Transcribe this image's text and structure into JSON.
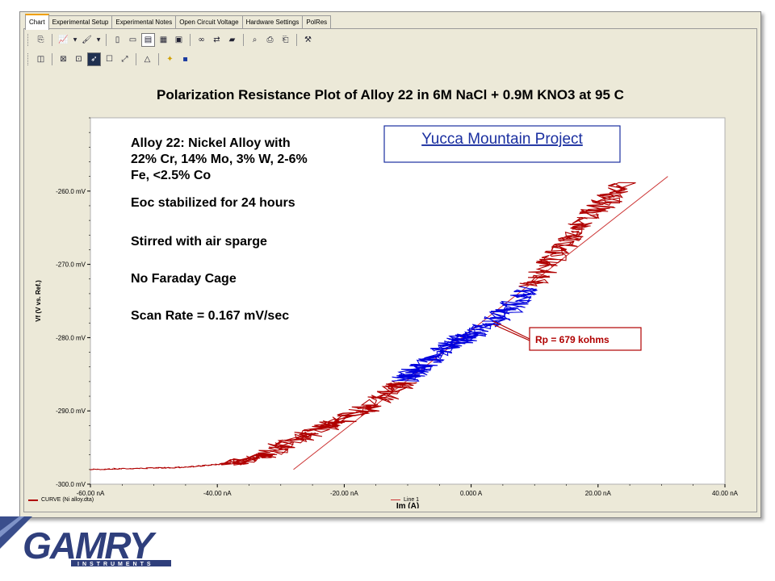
{
  "tabs": [
    {
      "label": "Chart"
    },
    {
      "label": "Experimental Setup"
    },
    {
      "label": "Experimental Notes"
    },
    {
      "label": "Open Circuit Voltage"
    },
    {
      "label": "Hardware Settings"
    },
    {
      "label": "PolRes"
    }
  ],
  "toolbar1": [
    "copy-icon",
    "chart-icon",
    "dropdown-icon",
    "paint-icon",
    "dropdown-icon",
    "page-icon",
    "page-icon",
    "table-icon",
    "grid-icon",
    "image-icon",
    "binoculars-icon",
    "transfer-icon",
    "folder-icon",
    "zoom-icon",
    "print-icon",
    "print-preview-icon",
    "tool-icon"
  ],
  "toolbar2": [
    "layout-icon",
    "x-axis-icon",
    "y-axis-icon",
    "cursor-icon",
    "select-icon",
    "fit-icon",
    "warning-icon",
    "open-icon",
    "save-icon"
  ],
  "chart": {
    "title": "Polarization Resistance Plot of Alloy 22 in 6M NaCl + 0.9M KNO3 at 95 C",
    "annotation_lines": [
      "Alloy 22:  Nickel Alloy with",
      "22% Cr, 14% Mo, 3% W, 2-6%",
      "Fe, <2.5% Co",
      "Eoc stabilized for 24 hours",
      "Stirred with air sparge",
      "No Faraday Cage",
      "Scan Rate = 0.167 mV/sec"
    ],
    "project_label": "Yucca Mountain Project",
    "rp_label": "Rp = 679 kohms"
  },
  "chart_data": {
    "type": "line",
    "title": "Polarization Resistance Plot of Alloy 22 in 6M NaCl + 0.9M KNO3 at 95 C",
    "xlabel": "Im (A)",
    "ylabel": "Vf (V vs. Ref.)",
    "xlim": [
      -60,
      40
    ],
    "ylim": [
      -300,
      -250
    ],
    "x_ticks": [
      "-60.00 nA",
      "-40.00 nA",
      "-20.00 nA",
      "0.000 A",
      "20.00 nA",
      "40.00 nA"
    ],
    "y_ticks": [
      "-260.0 mV",
      "-270.0 mV",
      "-280.0 mV",
      "-290.0 mV",
      "-300.0 mV"
    ],
    "grid": false,
    "legend_position": "bottom",
    "series": [
      {
        "name": "CURVE (Ni alloy.dta)",
        "color": "#b00000",
        "highlight_color": "#0000dd",
        "x": [
          -60,
          -50,
          -45,
          -40,
          -36,
          -32,
          -28,
          -24,
          -20,
          -16,
          -12,
          -10,
          -8,
          -5,
          -2,
          0,
          3,
          6,
          9,
          12,
          15,
          18,
          21,
          24
        ],
        "y": [
          -298,
          -297.8,
          -297.7,
          -297.3,
          -296.9,
          -296,
          -294,
          -292.5,
          -291,
          -289.5,
          -287,
          -285.5,
          -284,
          -282,
          -280.5,
          -279.5,
          -278,
          -276,
          -273.5,
          -270,
          -267,
          -264,
          -261.5,
          -259
        ]
      },
      {
        "name": "Line 1",
        "color": "#cc3333",
        "x": [
          -28,
          31
        ],
        "y": [
          -298,
          -258
        ]
      }
    ]
  },
  "legend": {
    "curve": "CURVE (Ni alloy.dta)",
    "line": "Line 1"
  },
  "logo": {
    "name": "GAMRY",
    "subtitle": "INSTRUMENTS"
  }
}
